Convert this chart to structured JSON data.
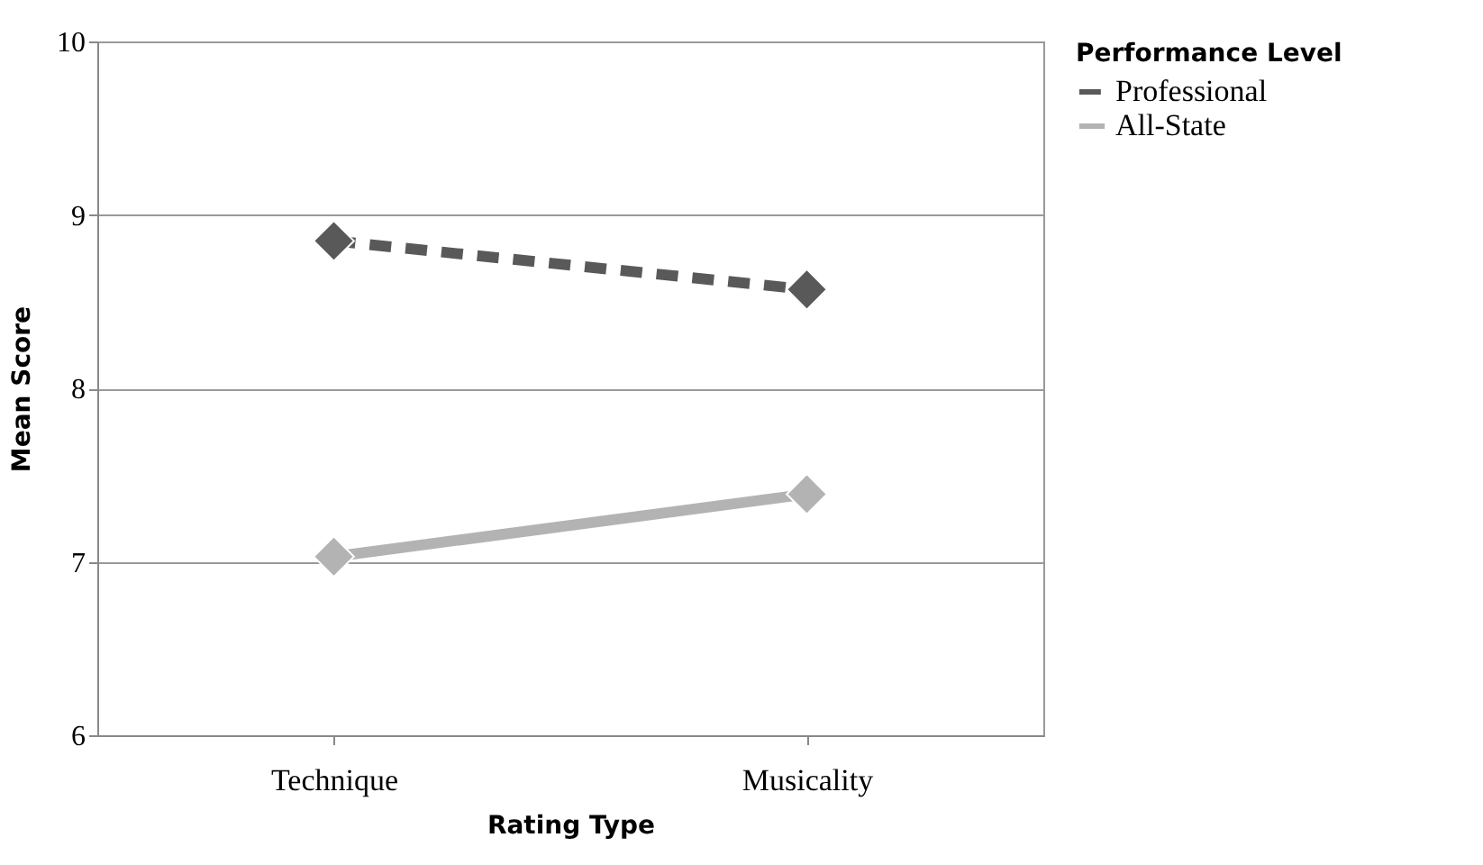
{
  "chart_data": {
    "type": "line",
    "xlabel": "Rating Type",
    "ylabel": "Mean Score",
    "legend_title": "Performance Level",
    "categories": [
      "Technique",
      "Musicality"
    ],
    "series": [
      {
        "name": "Professional",
        "color": "#595959",
        "values": [
          8.85,
          8.57
        ],
        "line_style": "dashed"
      },
      {
        "name": "All-State",
        "color": "#b3b3b3",
        "values": [
          7.03,
          7.39
        ],
        "line_style": "solid"
      }
    ],
    "ylim": [
      6,
      10
    ],
    "yticks": [
      6,
      7,
      8,
      9,
      10
    ],
    "grid": "y",
    "legend": "right",
    "marker": "diamond"
  }
}
